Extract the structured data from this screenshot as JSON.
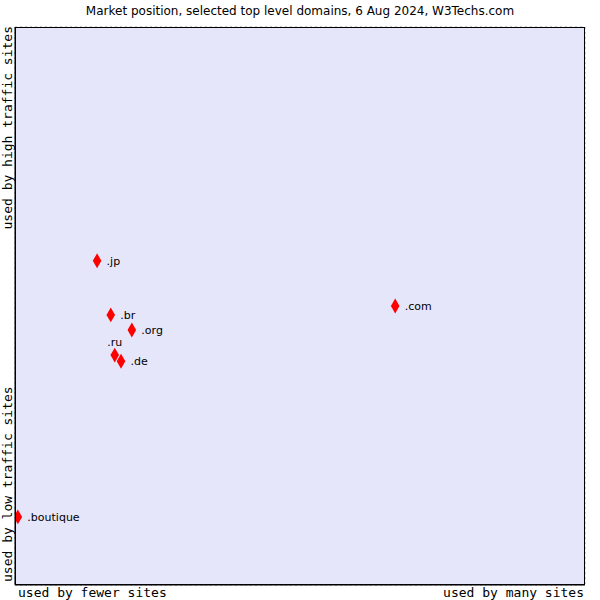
{
  "chart_data": {
    "type": "scatter",
    "title": "Market position, selected top level domains, 6 Aug 2024, W3Techs.com",
    "x_labels": [
      "used by fewer sites",
      "used by many sites"
    ],
    "y_labels": [
      "used by low traffic sites",
      "used by high traffic sites"
    ],
    "labels": [
      ".jp",
      ".br",
      ".org",
      ".ru",
      ".de",
      ".com",
      ".boutique"
    ],
    "x": [
      1.44,
      1.68,
      2.05,
      1.75,
      1.86,
      6.67,
      0.05
    ],
    "values": [
      5.81,
      4.84,
      4.57,
      4.12,
      4.01,
      5.0,
      1.22
    ],
    "xlim": [
      0,
      10
    ],
    "ylim": [
      0,
      10
    ],
    "xticks": [
      0,
      1,
      2,
      3,
      4,
      5,
      6,
      7,
      8,
      9,
      10
    ],
    "yticks": [
      0,
      1,
      2,
      3,
      4,
      5,
      6,
      7,
      8,
      9,
      10
    ],
    "grid": true,
    "tick_labels": false,
    "color": "#ff0000",
    "marker": "diamond"
  }
}
